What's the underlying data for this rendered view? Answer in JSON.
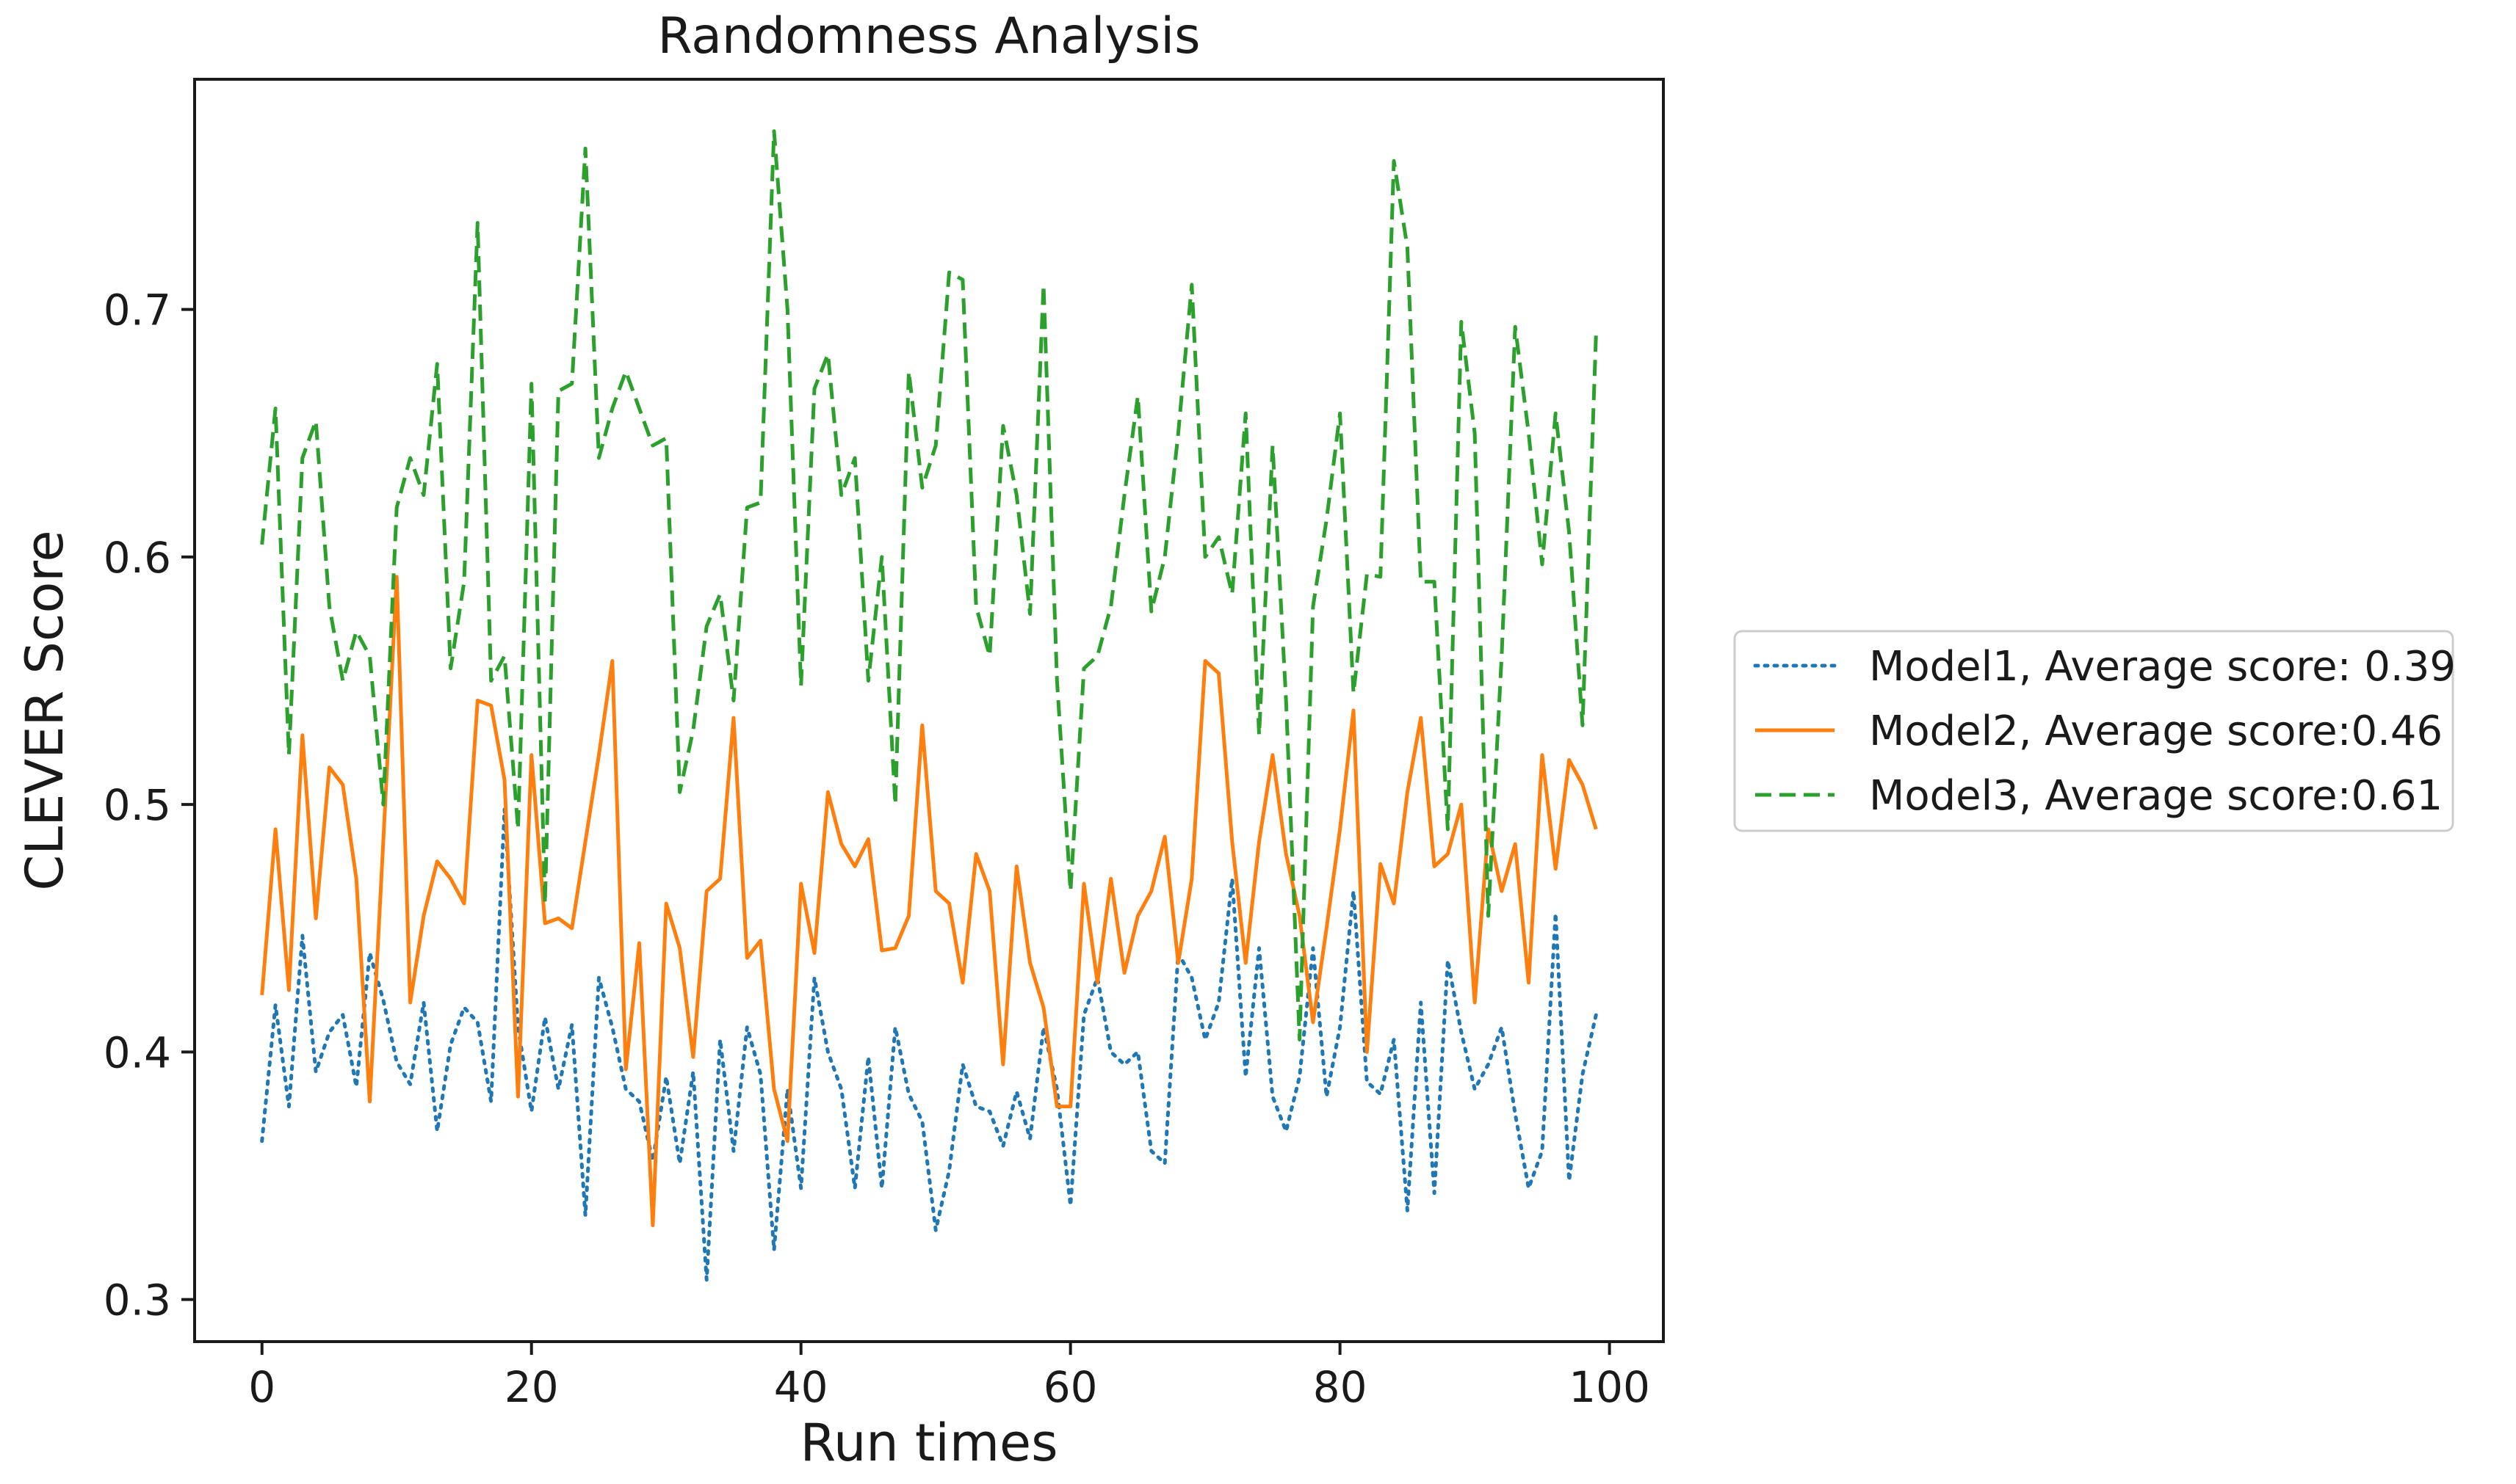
{
  "chart_data": {
    "type": "line",
    "title": "Randomness Analysis",
    "xlabel": "Run times",
    "ylabel": "CLEVER Score",
    "xlim": [
      -5,
      104
    ],
    "ylim": [
      0.283,
      0.793
    ],
    "xticks": [
      0,
      20,
      40,
      60,
      80,
      100
    ],
    "yticks": [
      0.3,
      0.4,
      0.5,
      0.6,
      0.7
    ],
    "xtick_labels": [
      "0",
      "20",
      "40",
      "60",
      "80",
      "100"
    ],
    "ytick_labels": [
      "0.3",
      "0.4",
      "0.5",
      "0.6",
      "0.7"
    ],
    "grid": false,
    "legend_position": "outside-right",
    "series": [
      {
        "name": "Model1, Average score: 0.39",
        "color": "#1f77b4",
        "style": "dotted",
        "x": [
          0,
          1,
          2,
          3,
          4,
          5,
          6,
          7,
          8,
          9,
          10,
          11,
          12,
          13,
          14,
          15,
          16,
          17,
          18,
          19,
          20,
          21,
          22,
          23,
          24,
          25,
          26,
          27,
          28,
          29,
          30,
          31,
          32,
          33,
          34,
          35,
          36,
          37,
          38,
          39,
          40,
          41,
          42,
          43,
          44,
          45,
          46,
          47,
          48,
          49,
          50,
          51,
          52,
          53,
          54,
          55,
          56,
          57,
          58,
          59,
          60,
          61,
          62,
          63,
          64,
          65,
          66,
          67,
          68,
          69,
          70,
          71,
          72,
          73,
          74,
          75,
          76,
          77,
          78,
          79,
          80,
          81,
          82,
          83,
          84,
          85,
          86,
          87,
          88,
          89,
          90,
          91,
          92,
          93,
          94,
          95,
          96,
          97,
          98,
          99
        ],
        "values": [
          0.364,
          0.419,
          0.378,
          0.447,
          0.392,
          0.408,
          0.415,
          0.386,
          0.44,
          0.421,
          0.396,
          0.387,
          0.42,
          0.368,
          0.403,
          0.418,
          0.412,
          0.38,
          0.498,
          0.41,
          0.376,
          0.414,
          0.385,
          0.411,
          0.334,
          0.43,
          0.41,
          0.385,
          0.38,
          0.356,
          0.39,
          0.355,
          0.392,
          0.308,
          0.405,
          0.36,
          0.41,
          0.391,
          0.32,
          0.385,
          0.345,
          0.43,
          0.4,
          0.385,
          0.345,
          0.398,
          0.345,
          0.41,
          0.383,
          0.372,
          0.328,
          0.352,
          0.395,
          0.378,
          0.376,
          0.362,
          0.384,
          0.365,
          0.41,
          0.385,
          0.338,
          0.415,
          0.43,
          0.4,
          0.395,
          0.4,
          0.36,
          0.355,
          0.44,
          0.43,
          0.405,
          0.42,
          0.47,
          0.39,
          0.442,
          0.382,
          0.368,
          0.39,
          0.442,
          0.382,
          0.41,
          0.465,
          0.388,
          0.383,
          0.405,
          0.336,
          0.42,
          0.343,
          0.437,
          0.408,
          0.385,
          0.395,
          0.41,
          0.375,
          0.345,
          0.36,
          0.456,
          0.348,
          0.391,
          0.415
        ]
      },
      {
        "name": "Model2, Average score:0.46",
        "color": "#ff7f0e",
        "style": "solid",
        "x": [
          0,
          1,
          2,
          3,
          4,
          5,
          6,
          7,
          8,
          9,
          10,
          11,
          12,
          13,
          14,
          15,
          16,
          17,
          18,
          19,
          20,
          21,
          22,
          23,
          24,
          25,
          26,
          27,
          28,
          29,
          30,
          31,
          32,
          33,
          34,
          35,
          36,
          37,
          38,
          39,
          40,
          41,
          42,
          43,
          44,
          45,
          46,
          47,
          48,
          49,
          50,
          51,
          52,
          53,
          54,
          55,
          56,
          57,
          58,
          59,
          60,
          61,
          62,
          63,
          64,
          65,
          66,
          67,
          68,
          69,
          70,
          71,
          72,
          73,
          74,
          75,
          76,
          77,
          78,
          79,
          80,
          81,
          82,
          83,
          84,
          85,
          86,
          87,
          88,
          89,
          90,
          91,
          92,
          93,
          94,
          95,
          96,
          97,
          98,
          99
        ],
        "values": [
          0.423,
          0.49,
          0.425,
          0.528,
          0.454,
          0.515,
          0.508,
          0.47,
          0.38,
          0.485,
          0.592,
          0.42,
          0.455,
          0.477,
          0.47,
          0.46,
          0.542,
          0.54,
          0.51,
          0.382,
          0.52,
          0.452,
          0.454,
          0.45,
          0.485,
          0.52,
          0.558,
          0.393,
          0.444,
          0.33,
          0.46,
          0.442,
          0.398,
          0.465,
          0.47,
          0.535,
          0.438,
          0.445,
          0.385,
          0.364,
          0.468,
          0.44,
          0.505,
          0.484,
          0.475,
          0.486,
          0.441,
          0.442,
          0.455,
          0.532,
          0.465,
          0.46,
          0.428,
          0.48,
          0.465,
          0.395,
          0.475,
          0.436,
          0.418,
          0.378,
          0.378,
          0.468,
          0.428,
          0.47,
          0.432,
          0.455,
          0.465,
          0.487,
          0.436,
          0.47,
          0.558,
          0.553,
          0.485,
          0.436,
          0.485,
          0.52,
          0.48,
          0.455,
          0.412,
          0.45,
          0.49,
          0.538,
          0.4,
          0.476,
          0.46,
          0.505,
          0.535,
          0.475,
          0.48,
          0.5,
          0.42,
          0.49,
          0.465,
          0.484,
          0.428,
          0.52,
          0.474,
          0.518,
          0.508,
          0.49
        ]
      },
      {
        "name": "Model3, Average score:0.61",
        "color": "#2ca02c",
        "style": "dashed",
        "x": [
          0,
          1,
          2,
          3,
          4,
          5,
          6,
          7,
          8,
          9,
          10,
          11,
          12,
          13,
          14,
          15,
          16,
          17,
          18,
          19,
          20,
          21,
          22,
          23,
          24,
          25,
          26,
          27,
          28,
          29,
          30,
          31,
          32,
          33,
          34,
          35,
          36,
          37,
          38,
          39,
          40,
          41,
          42,
          43,
          44,
          45,
          46,
          47,
          48,
          49,
          50,
          51,
          52,
          53,
          54,
          55,
          56,
          57,
          58,
          59,
          60,
          61,
          62,
          63,
          64,
          65,
          66,
          67,
          68,
          69,
          70,
          71,
          72,
          73,
          74,
          75,
          76,
          77,
          78,
          79,
          80,
          81,
          82,
          83,
          84,
          85,
          86,
          87,
          88,
          89,
          90,
          91,
          92,
          93,
          94,
          95,
          96,
          97,
          98,
          99
        ],
        "values": [
          0.605,
          0.66,
          0.52,
          0.64,
          0.655,
          0.58,
          0.55,
          0.57,
          0.56,
          0.5,
          0.62,
          0.64,
          0.625,
          0.678,
          0.555,
          0.59,
          0.735,
          0.55,
          0.56,
          0.49,
          0.67,
          0.46,
          0.667,
          0.67,
          0.765,
          0.64,
          0.66,
          0.675,
          0.66,
          0.645,
          0.648,
          0.505,
          0.53,
          0.572,
          0.585,
          0.542,
          0.62,
          0.622,
          0.772,
          0.7,
          0.548,
          0.668,
          0.682,
          0.625,
          0.64,
          0.55,
          0.6,
          0.5,
          0.675,
          0.628,
          0.645,
          0.715,
          0.712,
          0.58,
          0.56,
          0.653,
          0.625,
          0.577,
          0.71,
          0.55,
          0.465,
          0.555,
          0.56,
          0.58,
          0.625,
          0.665,
          0.578,
          0.6,
          0.65,
          0.71,
          0.6,
          0.608,
          0.585,
          0.658,
          0.528,
          0.645,
          0.542,
          0.405,
          0.58,
          0.615,
          0.658,
          0.545,
          0.593,
          0.592,
          0.76,
          0.725,
          0.59,
          0.59,
          0.49,
          0.695,
          0.65,
          0.455,
          0.56,
          0.693,
          0.65,
          0.597,
          0.658,
          0.61,
          0.532,
          0.69
        ]
      }
    ]
  }
}
